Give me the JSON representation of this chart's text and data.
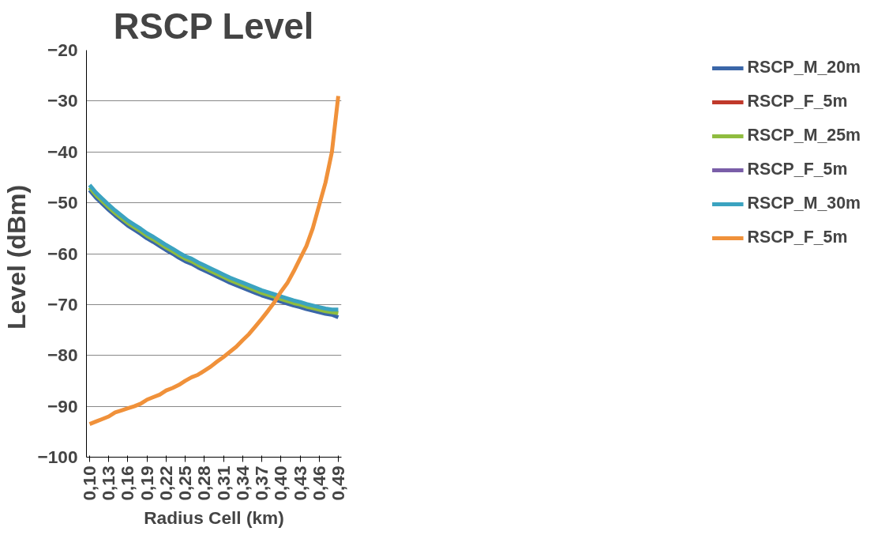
{
  "chart_data": {
    "type": "line",
    "title": "RSCP Level",
    "xlabel": "Radius Cell (km)",
    "ylabel": "Level  (dBm)",
    "categories": [
      "0,10",
      null,
      null,
      "0,13",
      null,
      null,
      "0,16",
      null,
      null,
      "0,19",
      null,
      null,
      "0,22",
      null,
      null,
      "0,25",
      null,
      null,
      "0,28",
      null,
      null,
      "0,31",
      null,
      null,
      "0,34",
      null,
      null,
      "0,37",
      null,
      null,
      "0,40",
      null,
      null,
      "0,43",
      null,
      null,
      "0,46",
      null,
      null,
      "0,49"
    ],
    "ylim": [
      -100,
      -20
    ],
    "yticks": [
      -100,
      -90,
      -80,
      -70,
      -60,
      -50,
      -40,
      -30,
      -20
    ],
    "grid": "y",
    "legend": "right",
    "marker": "none",
    "line_style": "solid",
    "series": [
      {
        "name": "RSCP_M_20m",
        "color": "#3a66a8",
        "values": [
          -47.5,
          -49,
          -50.2,
          -51.4,
          -52.5,
          -53.5,
          -54.5,
          -55.3,
          -56.1,
          -57,
          -57.7,
          -58.5,
          -59.3,
          -60,
          -60.8,
          -61.5,
          -62,
          -62.7,
          -63.3,
          -63.9,
          -64.5,
          -65.1,
          -65.7,
          -66.2,
          -66.7,
          -67.2,
          -67.7,
          -68.2,
          -68.6,
          -69,
          -69.4,
          -69.8,
          -70.2,
          -70.5,
          -70.9,
          -71.2,
          -71.5,
          -71.8,
          -72,
          -72.5
        ]
      },
      {
        "name": "RSCP_F_5m",
        "color": "#c0392b",
        "values": [
          null,
          null,
          null,
          null,
          null,
          null,
          null,
          null,
          null,
          null,
          null,
          null,
          null,
          null,
          null,
          null,
          null,
          null,
          null,
          null,
          null,
          null,
          null,
          null,
          null,
          null,
          null,
          null,
          null,
          null,
          null,
          null,
          null,
          null,
          null,
          null,
          null,
          null,
          null,
          null
        ]
      },
      {
        "name": "RSCP_M_25m",
        "color": "#8fbc3f",
        "values": [
          -47,
          -48.5,
          -49.7,
          -50.9,
          -52,
          -53,
          -54,
          -54.8,
          -55.6,
          -56.5,
          -57.2,
          -58,
          -58.8,
          -59.5,
          -60.3,
          -61,
          -61.5,
          -62.2,
          -62.8,
          -63.4,
          -64,
          -64.6,
          -65.2,
          -65.7,
          -66.2,
          -66.7,
          -67.2,
          -67.7,
          -68.1,
          -68.5,
          -68.9,
          -69.3,
          -69.7,
          -70,
          -70.4,
          -70.7,
          -71,
          -71.3,
          -71.5,
          -71.7
        ]
      },
      {
        "name": "RSCP_F_5m",
        "color": "#7a5ea8",
        "values": [
          null,
          null,
          null,
          null,
          null,
          null,
          null,
          null,
          null,
          null,
          null,
          null,
          null,
          null,
          null,
          null,
          null,
          null,
          null,
          null,
          null,
          null,
          null,
          null,
          null,
          null,
          null,
          null,
          null,
          null,
          null,
          null,
          null,
          null,
          null,
          null,
          null,
          null,
          null,
          null
        ]
      },
      {
        "name": "RSCP_M_30m",
        "color": "#3ba3c0",
        "values": [
          -46.5,
          -48,
          -49.2,
          -50.4,
          -51.5,
          -52.5,
          -53.5,
          -54.3,
          -55.1,
          -56,
          -56.7,
          -57.5,
          -58.3,
          -59,
          -59.8,
          -60.5,
          -61,
          -61.7,
          -62.3,
          -62.9,
          -63.5,
          -64.1,
          -64.7,
          -65.2,
          -65.7,
          -66.2,
          -66.7,
          -67.2,
          -67.6,
          -68,
          -68.4,
          -68.8,
          -69.2,
          -69.5,
          -69.9,
          -70.2,
          -70.5,
          -70.8,
          -71,
          -71
        ]
      },
      {
        "name": "RSCP_F_5m",
        "color": "#f0913a",
        "values": [
          -93.5,
          -93,
          -92.5,
          -92,
          -91.2,
          -90.8,
          -90.4,
          -90,
          -89.5,
          -88.7,
          -88.2,
          -87.7,
          -86.9,
          -86.4,
          -85.8,
          -85,
          -84.3,
          -83.8,
          -83,
          -82.2,
          -81.2,
          -80.3,
          -79.3,
          -78.3,
          -77,
          -75.8,
          -74.3,
          -72.8,
          -71.2,
          -69.5,
          -67.5,
          -65.8,
          -63.5,
          -61,
          -58.5,
          -55,
          -50.5,
          -46,
          -40,
          -29
        ]
      }
    ]
  }
}
